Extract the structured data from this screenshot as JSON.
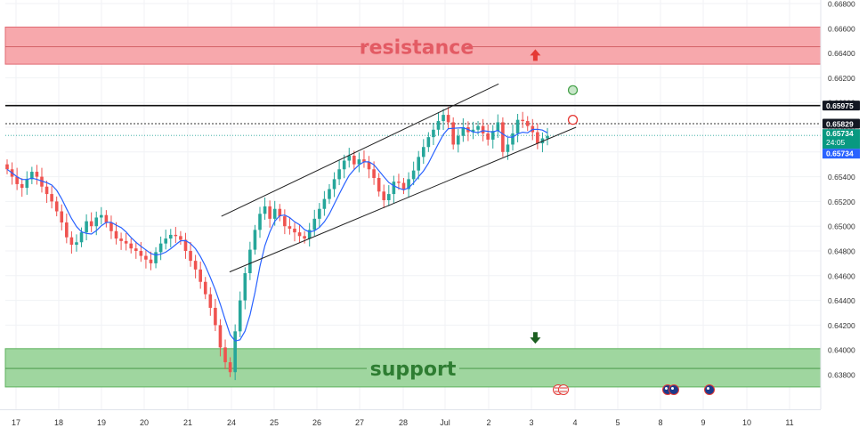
{
  "chart_data": {
    "type": "candlestick",
    "y_axis": {
      "ylim": [
        0.637,
        0.668
      ],
      "ticks": [
        "0.66800",
        "0.66600",
        "0.66400",
        "0.66200",
        "0.66000",
        "0.65800",
        "0.65600",
        "0.65400",
        "0.65200",
        "0.65000",
        "0.64800",
        "0.64600",
        "0.64400",
        "0.64200",
        "0.64000",
        "0.63800"
      ]
    },
    "x_axis": {
      "ticks": [
        "17",
        "18",
        "19",
        "20",
        "21",
        "24",
        "25",
        "26",
        "27",
        "28",
        "Jul",
        "2",
        "3",
        "4",
        "5",
        "8",
        "9",
        "10",
        "11"
      ]
    },
    "zones": {
      "resistance": {
        "label": "resistance",
        "low": 0.6631,
        "high": 0.6661,
        "mid": 0.6645,
        "color": "#f7a8ac"
      },
      "support": {
        "label": "support",
        "low": 0.637,
        "high": 0.6401,
        "mid": 0.6385,
        "color": "#9fd69f"
      }
    },
    "levels": {
      "black_line": 0.65975,
      "dotted_line": 0.65829,
      "last_price": 0.65734
    },
    "price_labels": {
      "level_1": "0.65975",
      "level_2": "0.65829",
      "current": "0.65734",
      "countdown": "24:05",
      "current_2": "0.65734"
    },
    "channel": {
      "upper": [
        {
          "t": 0.265,
          "p": 0.6508
        },
        {
          "t": 0.605,
          "p": 0.6615
        }
      ],
      "lower": [
        {
          "t": 0.275,
          "p": 0.6463
        },
        {
          "t": 0.7,
          "p": 0.658
        }
      ]
    },
    "markers": {
      "up_arrow": {
        "t": 0.65,
        "p": 0.6638
      },
      "down_arrow": {
        "t": 0.65,
        "p": 0.641
      },
      "green_circle": {
        "t": 0.696,
        "p": 0.661
      },
      "red_circle": {
        "t": 0.696,
        "p": 0.6586
      }
    },
    "closes": [
      0.6546,
      0.654,
      0.6534,
      0.6531,
      0.6538,
      0.6544,
      0.654,
      0.6532,
      0.6526,
      0.652,
      0.6512,
      0.6503,
      0.6491,
      0.6485,
      0.6487,
      0.6495,
      0.6504,
      0.65,
      0.6507,
      0.6509,
      0.6503,
      0.6496,
      0.649,
      0.6488,
      0.6486,
      0.6482,
      0.648,
      0.6476,
      0.6473,
      0.647,
      0.6479,
      0.6486,
      0.649,
      0.6493,
      0.6492,
      0.6489,
      0.648,
      0.6472,
      0.6465,
      0.6455,
      0.6445,
      0.6434,
      0.642,
      0.6402,
      0.639,
      0.6382,
      0.6415,
      0.644,
      0.6462,
      0.6481,
      0.6497,
      0.651,
      0.6516,
      0.6506,
      0.6514,
      0.6508,
      0.65,
      0.6498,
      0.6495,
      0.6492,
      0.649,
      0.6497,
      0.6506,
      0.6514,
      0.6522,
      0.653,
      0.6538,
      0.6546,
      0.6553,
      0.6557,
      0.655,
      0.6554,
      0.6552,
      0.6546,
      0.6539,
      0.6528,
      0.6521,
      0.6526,
      0.6536,
      0.6535,
      0.653,
      0.6538,
      0.6545,
      0.6556,
      0.6564,
      0.6572,
      0.6578,
      0.6585,
      0.659,
      0.6584,
      0.6566,
      0.6573,
      0.658,
      0.6576,
      0.6578,
      0.6581,
      0.6575,
      0.657,
      0.6577,
      0.6584,
      0.656,
      0.6566,
      0.6575,
      0.6586,
      0.6585,
      0.6581,
      0.6576,
      0.6567,
      0.6571,
      0.6573
    ]
  }
}
